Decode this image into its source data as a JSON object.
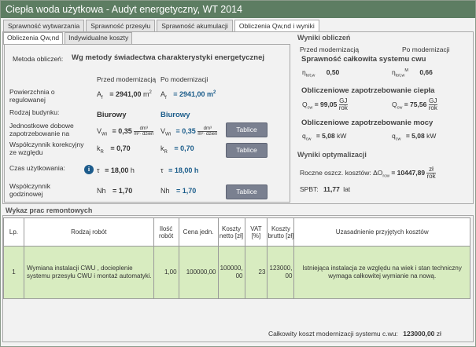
{
  "window": {
    "title": "Ciepła woda użytkowa - Audyt energetyczny, WT 2014"
  },
  "tabs": [
    {
      "label": "Sprawność wytwarzania"
    },
    {
      "label": "Sprawność przesyłu"
    },
    {
      "label": "Sprawność akumulacji"
    },
    {
      "label": "Obliczenia Qw,nd i wyniki"
    }
  ],
  "subtabs": [
    {
      "label": "Obliczenia Qw,nd"
    },
    {
      "label": "Indywidualne koszty"
    }
  ],
  "left": {
    "method_label": "Metoda obliczeń:",
    "method_value": "Wg metody świadectwa charakterystyki energetycznej",
    "col_before": "Przed modernizacją",
    "col_after": "Po modernizacji",
    "area_label": "Powierzchnia o regulowanej",
    "area_sym": "A",
    "area_sub": "f",
    "area_before": "= 2941,00",
    "area_after": "= 2941,00",
    "area_unit": "m",
    "area_unit_sup": "2",
    "building_label": "Rodzaj budynku:",
    "building_before": "Biurowy",
    "building_after": "Biurowy",
    "daily_label": "Jednostkowe dobowe zapotrzebowanie na",
    "daily_sym": "V",
    "daily_sub": "Wi",
    "daily_before": "= 0,35",
    "daily_after": "= 0,35",
    "daily_unit_num": "dm³",
    "daily_unit_den": "m²· dzień",
    "coef_label": "Współczynnik korekcyjny ze względu",
    "coef_sym": "k",
    "coef_sub": "R",
    "coef_before": "= 0,70",
    "coef_after": "= 0,70",
    "time_label": "Czas użytkowania:",
    "time_sym": "τ",
    "time_before": "= 18,00",
    "time_after": "= 18,00",
    "time_unit": "h",
    "hourly_label": "Współczynnik godzinowej",
    "hourly_sym": "Nh",
    "hourly_before": "= 1,70",
    "hourly_after": "= 1,70",
    "button_label": "Tablice"
  },
  "results": {
    "title": "Wyniki obliczeń",
    "col_before": "Przed modernizacją",
    "col_after": "Po modernizacji",
    "eff_title": "Sprawność całkowita systemu cwu",
    "eta_sym": "η",
    "eta_before_sub": "tot,w",
    "eta_after_sub": "tot,w",
    "eta_after_sup": "M",
    "eta_before": "0,50",
    "eta_after": "0,66",
    "heat_title": "Obliczeniowe zapotrzebowanie ciepła",
    "q_sym": "Q",
    "q_sub": "cw",
    "q_before": "= 99,05",
    "q_after": "= 75,56",
    "q_unit_num": "GJ",
    "q_unit_den": "rok",
    "power_title": "Obliczeniowe zapotrzebowanie mocy",
    "qp_sym": "q",
    "qp_sub": "cw",
    "qp_before": "= 5,08",
    "qp_after": "= 5,08",
    "qp_unit": "kW"
  },
  "optimization": {
    "title": "Wyniki optymalizacji",
    "savings_label": "Roczne oszcz. kosztów:",
    "savings_sym": "ΔO",
    "savings_sub": "rcw",
    "savings_value": "= 10447,89",
    "savings_unit_num": "zł",
    "savings_unit_den": "rok",
    "spbt_label": "SPBT:",
    "spbt_value": "11,77",
    "spbt_unit": "lat"
  },
  "works": {
    "title": "Wykaz prac remontowych",
    "headers": [
      "Lp.",
      "Rodzaj robót",
      "Ilość robót",
      "Cena jedn.",
      "Koszty netto [zł]",
      "VAT [%]",
      "Koszty brutto [zł]",
      "Uzasadnienie przyjętych kosztów"
    ],
    "rows": [
      {
        "lp": "1",
        "type": "Wymiana instalacji CWU , docieplenie systemu przesyłu CWU i montaż automatyki.",
        "qty": "1,00",
        "price": "100000,00",
        "net": "100000, 00",
        "vat": "23",
        "gross": "123000, 00",
        "reason": "Istniejąca instalacja ze względu na wiek i stan techniczny wymaga całkowitej wymianie na nową."
      }
    ],
    "total_label": "Całkowity koszt modernizacji systemu c.wu:",
    "total_value": "123000,00",
    "total_unit": "zł"
  }
}
